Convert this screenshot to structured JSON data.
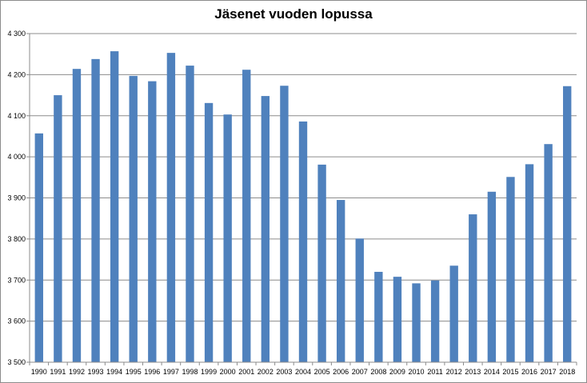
{
  "chart_data": {
    "type": "bar",
    "title": "Jäsenet vuoden lopussa",
    "xlabel": "",
    "ylabel": "",
    "ylim": [
      3500,
      4300
    ],
    "y_tick_step": 100,
    "y_tick_labels": [
      "3 500",
      "3 600",
      "3 700",
      "3 800",
      "3 900",
      "4 000",
      "4 100",
      "4 200",
      "4 300"
    ],
    "grid": "horizontal",
    "legend": "none",
    "bar_color": "#4f81bd",
    "categories": [
      "1990",
      "1991",
      "1992",
      "1993",
      "1994",
      "1995",
      "1996",
      "1997",
      "1998",
      "1999",
      "2000",
      "2001",
      "2002",
      "2003",
      "2004",
      "2005",
      "2006",
      "2007",
      "2008",
      "2009",
      "2010",
      "2011",
      "2012",
      "2013",
      "2014",
      "2015",
      "2016",
      "2017",
      "2018"
    ],
    "values": [
      4057,
      4150,
      4214,
      4238,
      4257,
      4197,
      4184,
      4253,
      4222,
      4131,
      4103,
      4212,
      4148,
      4173,
      4086,
      3981,
      3895,
      3801,
      3720,
      3708,
      3692,
      3699,
      3735,
      3860,
      3915,
      3951,
      3982,
      4031,
      4172
    ]
  }
}
